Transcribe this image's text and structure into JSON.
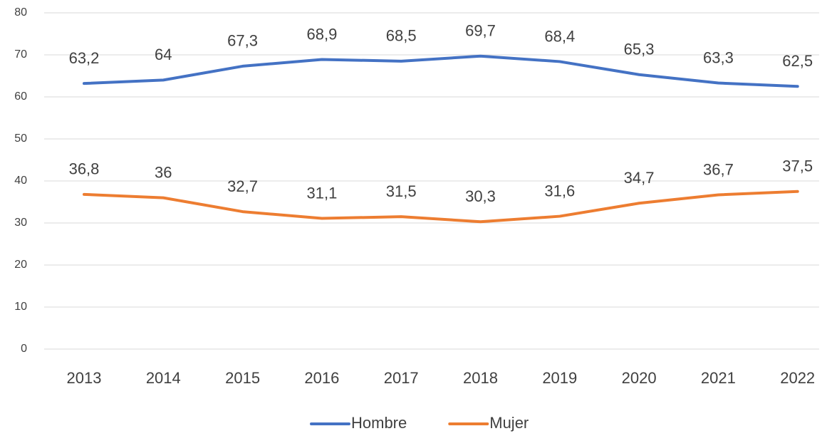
{
  "chart_data": {
    "type": "line",
    "categories": [
      "2013",
      "2014",
      "2015",
      "2016",
      "2017",
      "2018",
      "2019",
      "2020",
      "2021",
      "2022"
    ],
    "series": [
      {
        "name": "Hombre",
        "color": "#4472c4",
        "values": [
          63.2,
          64,
          67.3,
          68.9,
          68.5,
          69.7,
          68.4,
          65.3,
          63.3,
          62.5
        ],
        "value_labels": [
          "63,2",
          "64",
          "67,3",
          "68,9",
          "68,5",
          "69,7",
          "68,4",
          "65,3",
          "63,3",
          "62,5"
        ]
      },
      {
        "name": "Mujer",
        "color": "#ed7d31",
        "values": [
          36.8,
          36,
          32.7,
          31.1,
          31.5,
          30.3,
          31.6,
          34.7,
          36.7,
          37.5
        ],
        "value_labels": [
          "36,8",
          "36",
          "32,7",
          "31,1",
          "31,5",
          "30,3",
          "31,6",
          "34,7",
          "36,7",
          "37,5"
        ]
      }
    ],
    "ylim": [
      0,
      80
    ],
    "yticks": [
      0,
      10,
      20,
      30,
      40,
      50,
      60,
      70,
      80
    ],
    "grid": true,
    "legend": "bottom"
  }
}
